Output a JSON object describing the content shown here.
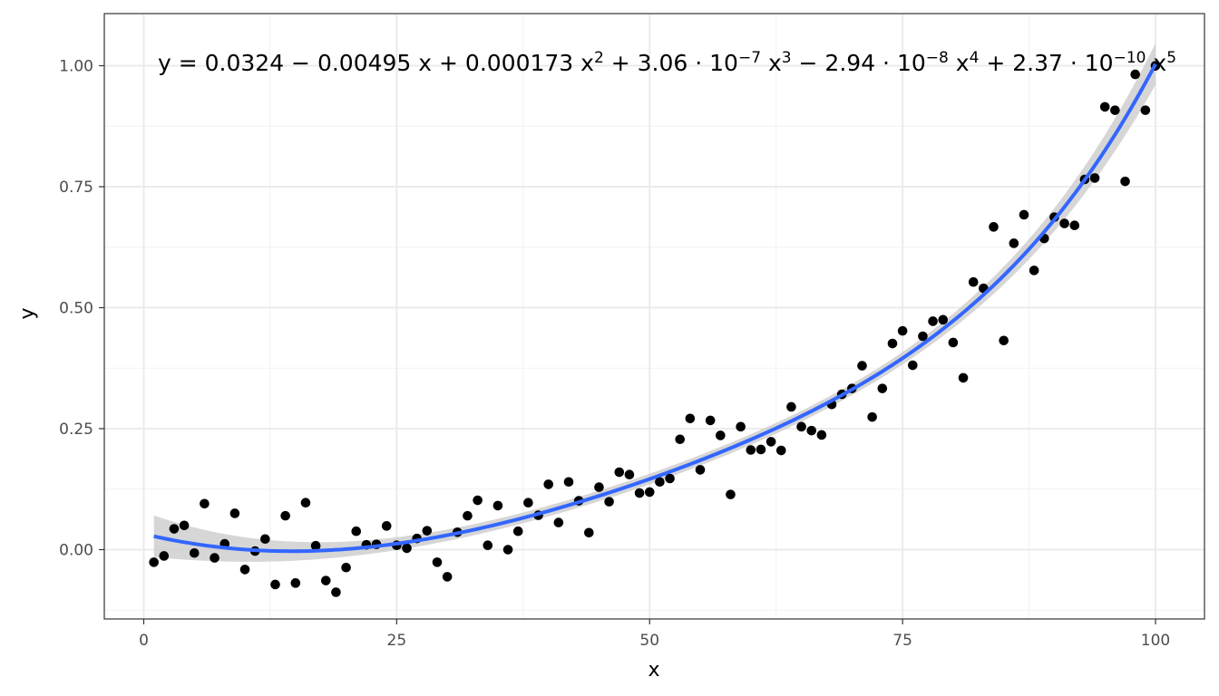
{
  "chart_data": {
    "type": "scatter",
    "title": "",
    "xlabel": "x",
    "ylabel": "y",
    "xlim": [
      -1.5,
      105.0
    ],
    "ylim": [
      -0.13,
      1.11
    ],
    "x_ticks": [
      0,
      25,
      50,
      75,
      100
    ],
    "x_tick_labels": [
      "0",
      "25",
      "50",
      "75",
      "100"
    ],
    "y_ticks": [
      0,
      0.25,
      0.5,
      0.75,
      1.0
    ],
    "y_tick_labels": [
      "0.00",
      "0.25",
      "0.50",
      "0.75",
      "1.00"
    ],
    "grid": true,
    "annotation": {
      "parts": [
        {
          "t": "y = 0.0324 − 0.00495 x + 0.000173 x"
        },
        {
          "t": "2",
          "sup": true
        },
        {
          "t": " + 3.06 · 10"
        },
        {
          "t": "−7",
          "sup": true
        },
        {
          "t": " x"
        },
        {
          "t": "3",
          "sup": true
        },
        {
          "t": " − 2.94 · 10"
        },
        {
          "t": "−8",
          "sup": true
        },
        {
          "t": " x"
        },
        {
          "t": "4",
          "sup": true
        },
        {
          "t": " + 2.37 · 10"
        },
        {
          "t": "−10",
          "sup": true
        },
        {
          "t": " x"
        },
        {
          "t": "5",
          "sup": true
        }
      ]
    },
    "fit": {
      "method": "polynomial degree 5",
      "coefficients": [
        0.0324,
        -0.00495,
        0.000173,
        3.06e-07,
        -2.94e-08,
        2.37e-10
      ],
      "color": "#3366FF",
      "band_color": "#cccccc"
    },
    "points": {
      "color": "#000000",
      "x": [
        1,
        2,
        3,
        4,
        5,
        6,
        7,
        8,
        9,
        10,
        11,
        12,
        13,
        14,
        15,
        16,
        17,
        18,
        19,
        20,
        21,
        22,
        23,
        24,
        25,
        26,
        27,
        28,
        29,
        30,
        31,
        32,
        33,
        34,
        35,
        36,
        37,
        38,
        39,
        40,
        41,
        42,
        43,
        44,
        45,
        46,
        47,
        48,
        49,
        50,
        51,
        52,
        53,
        54,
        55,
        56,
        57,
        58,
        59,
        60,
        61,
        62,
        63,
        64,
        65,
        66,
        67,
        68,
        69,
        70,
        71,
        72,
        73,
        74,
        75,
        76,
        77,
        78,
        79,
        80,
        81,
        82,
        83,
        84,
        85,
        86,
        87,
        88,
        89,
        90,
        91,
        92,
        93,
        94,
        95,
        96,
        97,
        98,
        99,
        100
      ],
      "y": [
        -0.026,
        -0.013,
        0.043,
        0.05,
        -0.007,
        0.095,
        -0.017,
        0.012,
        0.075,
        -0.041,
        -0.003,
        0.022,
        -0.072,
        0.07,
        -0.069,
        0.097,
        0.008,
        -0.064,
        -0.088,
        -0.037,
        0.038,
        0.01,
        0.011,
        0.049,
        0.009,
        0.003,
        0.023,
        0.039,
        -0.026,
        -0.056,
        0.036,
        0.07,
        0.102,
        0.009,
        0.091,
        0.0,
        0.038,
        0.097,
        0.071,
        0.135,
        0.056,
        0.14,
        0.101,
        0.035,
        0.129,
        0.099,
        0.16,
        0.155,
        0.117,
        0.119,
        0.14,
        0.147,
        0.228,
        0.271,
        0.165,
        0.267,
        0.236,
        0.114,
        0.254,
        0.206,
        0.207,
        0.223,
        0.205,
        0.295,
        0.254,
        0.246,
        0.237,
        0.3,
        0.321,
        0.333,
        0.38,
        0.274,
        0.333,
        0.426,
        0.452,
        0.381,
        0.441,
        0.472,
        0.475,
        0.428,
        0.355,
        0.553,
        0.54,
        0.667,
        0.432,
        0.633,
        0.692,
        0.577,
        0.643,
        0.687,
        0.674,
        0.67,
        0.765,
        0.768,
        0.915,
        0.908,
        0.761,
        0.982,
        0.908,
        1.0
      ]
    }
  }
}
